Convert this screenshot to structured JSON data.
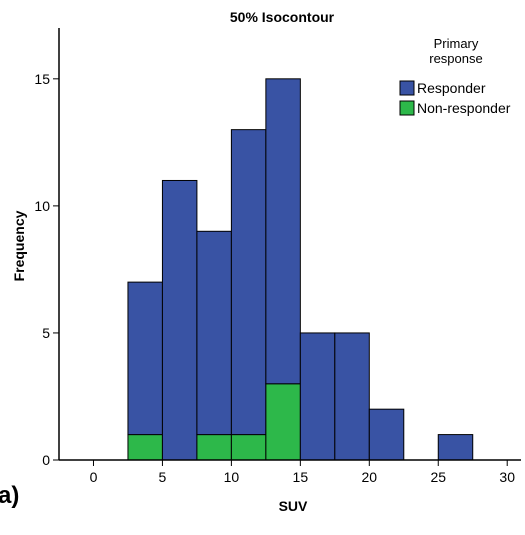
{
  "chart_data": {
    "type": "bar",
    "title": "50% Isocontour",
    "xlabel": "SUV",
    "ylabel": "Frequency",
    "panel_label": "a)",
    "xlim": [
      -2.5,
      31
    ],
    "ylim": [
      0,
      17
    ],
    "x_ticks": [
      0,
      5,
      10,
      15,
      20,
      25,
      30
    ],
    "y_ticks": [
      0,
      5,
      10,
      15
    ],
    "bin_width": 2.5,
    "bins": [
      2.5,
      5.0,
      7.5,
      10.0,
      12.5,
      15.0,
      17.5,
      20.0,
      25.0
    ],
    "stacked": true,
    "legend": {
      "title_lines": [
        "Primary",
        "response"
      ],
      "position": "top-right"
    },
    "series": [
      {
        "name": "Non-responder",
        "color": "#2db84a",
        "values": [
          1,
          0,
          1,
          1,
          3,
          0,
          0,
          0,
          0
        ]
      },
      {
        "name": "Responder",
        "color": "#3953a4",
        "values": [
          6,
          11,
          8,
          12,
          12,
          5,
          5,
          2,
          1
        ]
      }
    ],
    "legend_order": [
      1,
      0
    ]
  }
}
